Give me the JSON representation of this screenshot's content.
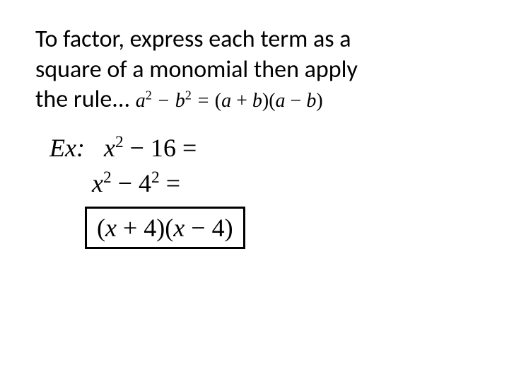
{
  "intro": {
    "line1": "To factor, express each term as a",
    "line2": "square of a monomial then apply",
    "line3_prefix": "the rule..."
  },
  "rule": {
    "a": "a",
    "exp2_1": "2",
    "minus1": " − ",
    "b": "b",
    "exp2_2": "2",
    "eq": " = ",
    "open1": "(",
    "a2": "a",
    "plus": " + ",
    "b2": "b",
    "close1": ")",
    "open2": "(",
    "a3": "a",
    "minus2": " − ",
    "b3": "b",
    "close2": ")"
  },
  "example": {
    "label": "Ex:",
    "step1": {
      "x": "x",
      "exp": "2",
      "minus": " − ",
      "sixteen": "16",
      "eq": " ="
    },
    "step2": {
      "x": "x",
      "exp1": "2",
      "minus": " − ",
      "four": "4",
      "exp2": "2",
      "eq": " ="
    },
    "answer": {
      "open1": "(",
      "x1": "x",
      "plus": " + ",
      "four1": "4",
      "close1": ")",
      "open2": "(",
      "x2": "x",
      "minus": " − ",
      "four2": "4",
      "close2": ")"
    }
  },
  "colors": {
    "text": "#000000",
    "background": "#ffffff",
    "box_border": "#000000"
  },
  "fonts": {
    "body": "Calibri",
    "math": "Times New Roman",
    "intro_size": 34,
    "math_size": 36,
    "rule_size": 28
  }
}
